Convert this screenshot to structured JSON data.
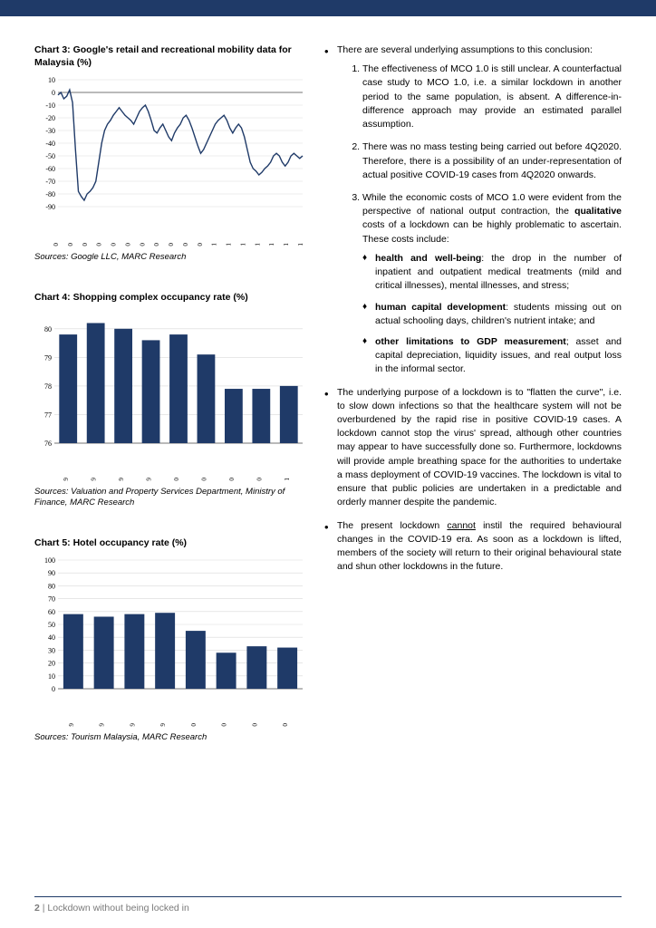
{
  "colors": {
    "primary": "#1f3a68",
    "gridline": "#d9d9d9",
    "background": "#ffffff",
    "footer_text": "#7a7a7a"
  },
  "chart3": {
    "title": "Chart 3: Google's retail and recreational mobility data for Malaysia (%)",
    "sources": "Sources: Google LLC, MARC Research",
    "type": "line",
    "xlabels": [
      "Feb-20",
      "Mar-20",
      "Apr-20",
      "May-20",
      "Jun-20",
      "Jul-20",
      "Aug-20",
      "Sep-20",
      "Oct-20",
      "Nov-20",
      "Dec-20",
      "Jan-21",
      "Feb-21",
      "Mar-21",
      "Apr-21",
      "May-21",
      "Jun-21",
      "Jul-21"
    ],
    "ylim": [
      -90,
      10
    ],
    "ytick_step": 10,
    "line_color": "#1f3a68",
    "line_width": 1.4,
    "series": [
      -2,
      0,
      -5,
      -3,
      2,
      -8,
      -45,
      -78,
      -82,
      -85,
      -80,
      -78,
      -75,
      -70,
      -55,
      -40,
      -30,
      -25,
      -22,
      -18,
      -15,
      -12,
      -15,
      -18,
      -20,
      -22,
      -25,
      -20,
      -15,
      -12,
      -10,
      -15,
      -22,
      -30,
      -32,
      -28,
      -25,
      -30,
      -35,
      -38,
      -32,
      -28,
      -25,
      -20,
      -18,
      -22,
      -28,
      -35,
      -42,
      -48,
      -45,
      -40,
      -35,
      -30,
      -25,
      -22,
      -20,
      -18,
      -22,
      -28,
      -32,
      -28,
      -25,
      -28,
      -35,
      -45,
      -55,
      -60,
      -62,
      -65,
      -63,
      -60,
      -58,
      -55,
      -50,
      -48,
      -50,
      -55,
      -58,
      -55,
      -50,
      -48,
      -50,
      -52,
      -50
    ]
  },
  "chart4": {
    "title": "Chart 4: Shopping complex occupancy rate (%)",
    "sources": "Sources: Valuation and Property Services Department, Ministry of Finance, MARC Research",
    "type": "bar",
    "xlabels": [
      "1Q2019",
      "2Q2019",
      "3Q2019",
      "4Q2019",
      "1Q2020",
      "2Q2020",
      "3Q2020",
      "4Q2020",
      "1Q2021"
    ],
    "values": [
      79.8,
      80.2,
      80.0,
      79.6,
      79.8,
      79.1,
      77.9,
      77.9,
      78.0
    ],
    "ylim": [
      76,
      80.5
    ],
    "yticks": [
      76,
      77,
      78,
      79,
      80
    ],
    "bar_color": "#1f3a68",
    "bar_width": 0.65
  },
  "chart5": {
    "title": "Chart 5: Hotel occupancy rate (%)",
    "sources": "Sources: Tourism Malaysia, MARC Research",
    "type": "bar",
    "xlabels": [
      "1Q2019",
      "2Q2019",
      "3Q2019",
      "4Q2019",
      "1Q2020",
      "2Q2020",
      "3Q2020",
      "4Q2020"
    ],
    "values": [
      58,
      56,
      58,
      59,
      45,
      28,
      33,
      32
    ],
    "ylim": [
      0,
      100
    ],
    "ytick_step": 10,
    "bar_color": "#1f3a68",
    "bar_width": 0.65
  },
  "right_col": {
    "b1": "There are several underlying assumptions to this conclusion:",
    "n1": "The effectiveness of MCO 1.0 is still unclear. A counterfactual case study to MCO 1.0, i.e. a similar lockdown in another period to the same population, is absent. A difference-in-difference approach may provide an estimated parallel assumption.",
    "n2": "There was no mass testing being carried out before 4Q2020. Therefore, there is a possibility of an under-representation of actual positive COVID-19 cases from 4Q2020 onwards.",
    "n3_intro": "While the economic costs of MCO 1.0 were evident from the perspective of national output contraction, the ",
    "n3_bold": "qualitative",
    "n3_rest": " costs of a lockdown can be highly problematic to ascertain. These costs include:",
    "s1_bold": "health and well-being",
    "s1_rest": ": the drop in the number of inpatient and outpatient medical treatments (mild and critical illnesses), mental illnesses, and stress;",
    "s2_bold": "human capital development",
    "s2_rest": ": students missing out on actual schooling days, children's nutrient intake; and",
    "s3_bold": "other limitations to GDP measurement",
    "s3_rest": "; asset and capital depreciation, liquidity issues, and real output loss in the informal sector.",
    "b2": "The underlying purpose of a lockdown is to \"flatten the curve\", i.e. to slow down infections so that the healthcare system will not be overburdened by the rapid rise in positive COVID-19 cases. A lockdown cannot stop the virus' spread, although other countries may appear to have successfully done so. Furthermore, lockdowns will provide ample breathing space for the authorities to undertake a mass deployment of COVID-19 vaccines. The lockdown is vital to ensure that public policies are undertaken in a predictable and orderly manner despite the pandemic.",
    "b3_a": "The present lockdown ",
    "b3_u": "cannot",
    "b3_b": " instil the required behavioural changes in the COVID-19 era. As soon as a lockdown is lifted, members of the society will return to their original behavioural state and shun other lockdowns in the future."
  },
  "footer": {
    "page_num": "2",
    "sep": "  |  ",
    "title": "Lockdown without being locked in"
  }
}
